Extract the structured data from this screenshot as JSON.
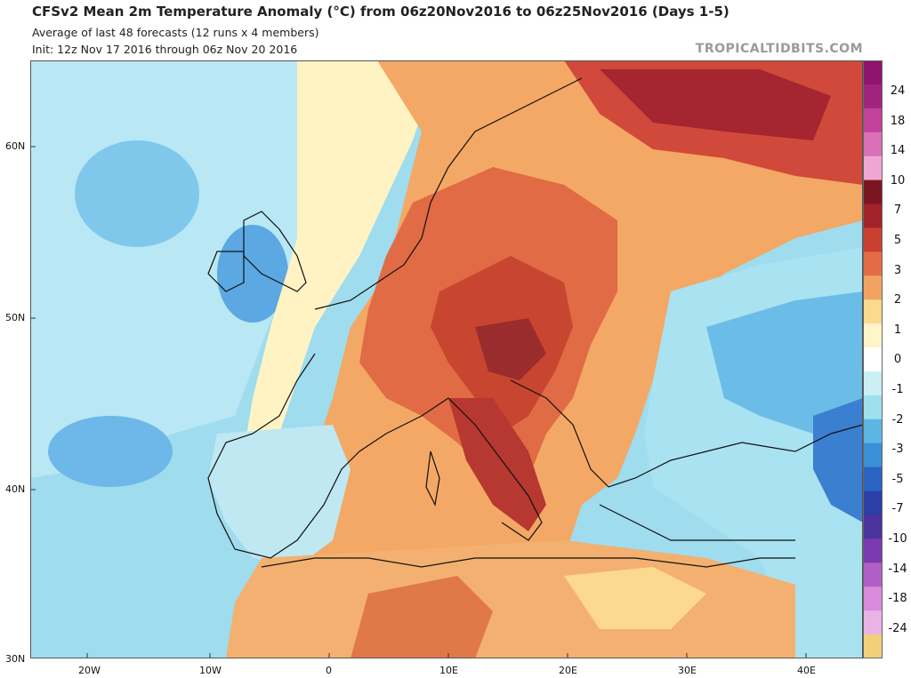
{
  "header": {
    "title": "CFSv2 Mean 2m Temperature Anomaly (°C) from 06z20Nov2016 to 06z25Nov2016 (Days 1-5)",
    "subtitle": "Average of last 48 forecasts (12 runs x 4 members)",
    "init": "Init: 12z Nov 17 2016 through 06z Nov 20 2016",
    "brand": "TROPICALTIDBITS.COM"
  },
  "axes": {
    "lat_labels": [
      "60N",
      "50N",
      "40N",
      "30N"
    ],
    "lon_labels": [
      "20W",
      "10W",
      "0",
      "10E",
      "20E",
      "30E",
      "40E"
    ]
  },
  "colorbar": {
    "labels": [
      "24",
      "18",
      "14",
      "10",
      "7",
      "5",
      "3",
      "2",
      "1",
      "0",
      "-1",
      "-2",
      "-3",
      "-5",
      "-7",
      "-10",
      "-14",
      "-18",
      "-24"
    ],
    "colors": [
      "#8e1470",
      "#a0237f",
      "#c2419b",
      "#db6fb8",
      "#f0a6d3",
      "#7a1620",
      "#a3222b",
      "#c94033",
      "#e36b45",
      "#f2a361",
      "#fbd98e",
      "#fff5c8",
      "#ffffff",
      "#cceff6",
      "#9ee0ee",
      "#5bb6e6",
      "#3b8fd9",
      "#2a64c2",
      "#2b3fa6",
      "#4b33a0",
      "#7c3ab0",
      "#b15fc6",
      "#d98bdc",
      "#eab3e6",
      "#f3cf7a"
    ]
  },
  "map": {
    "land_color": "#f2e5b0",
    "ocean_base": "#cfeef6"
  }
}
